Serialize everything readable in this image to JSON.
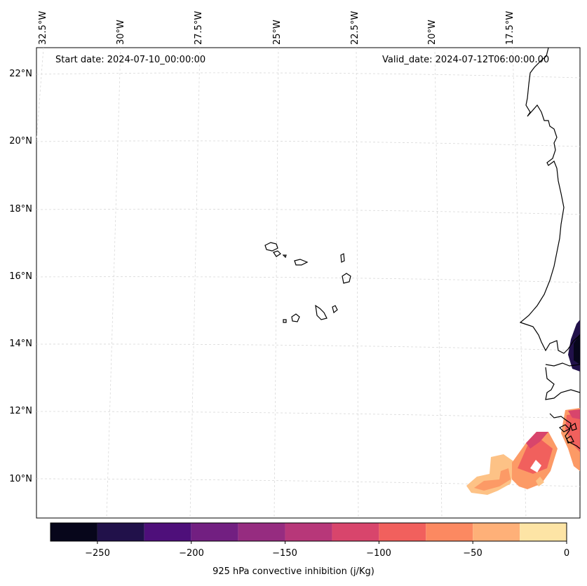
{
  "header": {
    "start_date": "Start date: 2024-07-10_00:00:00",
    "valid_date": "Valid_date: 2024-07-12T06:00:00.00"
  },
  "lon_labels": [
    "32.5°W",
    "30°W",
    "27.5°W",
    "25°W",
    "22.5°W",
    "20°W",
    "17.5°W"
  ],
  "lat_labels": [
    "22°N",
    "20°N",
    "18°N",
    "16°N",
    "14°N",
    "12°N",
    "10°N"
  ],
  "colorbar": {
    "label": "925 hPa convective inhibition (j/Kg)",
    "ticks": [
      "−250",
      "−200",
      "−150",
      "−100",
      "−50",
      "0"
    ],
    "levels": [
      -275,
      -250,
      -225,
      -200,
      -175,
      -150,
      -125,
      -100,
      -75,
      -50,
      -25,
      0
    ],
    "colors": [
      "#07061b",
      "#21114a",
      "#4e0f7a",
      "#721f81",
      "#962c80",
      "#b73779",
      "#d8456c",
      "#f1605d",
      "#fc8961",
      "#feb078",
      "#fde4a5"
    ]
  },
  "map": {
    "gridlines": true,
    "land_fill": "none",
    "coast_color": "#000000"
  }
}
